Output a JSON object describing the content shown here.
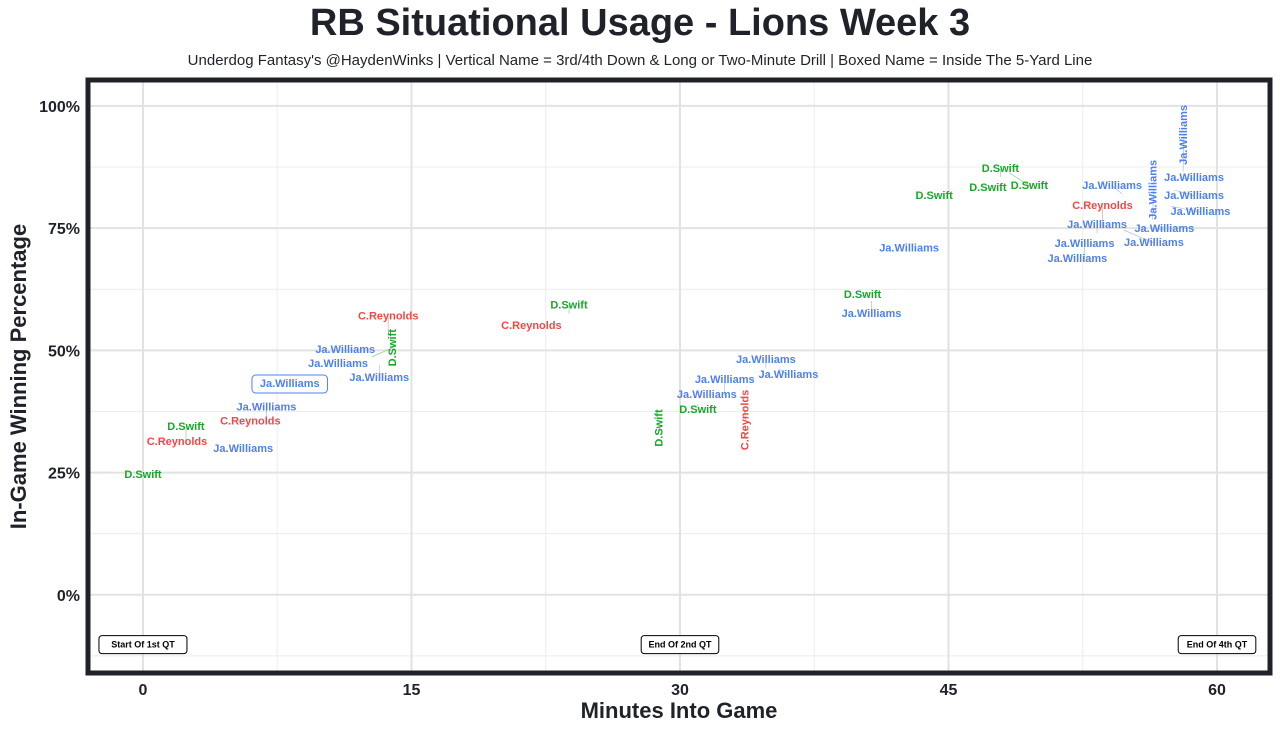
{
  "chart_data": {
    "type": "scatter",
    "title": "RB Situational Usage - Lions Week 3",
    "subtitle": "Underdog Fantasy's @HaydenWinks | Vertical Name = 3rd/4th Down & Long or Two-Minute Drill | Boxed Name = Inside The 5-Yard Line",
    "xlabel": "Minutes Into Game",
    "ylabel": "In-Game Winning Percentage",
    "xlim": [
      -3.07,
      62.96
    ],
    "ylim": [
      -16,
      105.3
    ],
    "xticks": [
      0,
      15,
      30,
      45,
      60
    ],
    "xtick_labels": [
      "0",
      "15",
      "30",
      "45",
      "60"
    ],
    "yticks": [
      0,
      25,
      50,
      75,
      100
    ],
    "ytick_labels": [
      "0%",
      "25%",
      "50%",
      "75%",
      "100%"
    ],
    "grid": true,
    "colors": {
      "Ja.Williams": "#4f80f0",
      "C.Reynolds": "#f04848",
      "D.Swift": "#16a82a"
    },
    "annotations": [
      {
        "text": "Start Of 1st QT",
        "x": 0,
        "y": -10.2
      },
      {
        "text": "End Of 2nd QT",
        "x": 30,
        "y": -10.2
      },
      {
        "text": "End Of 4th QT",
        "x": 60,
        "y": -10.2
      }
    ],
    "points": [
      {
        "name": "D.Swift",
        "x": 0,
        "y": 24.3,
        "vertical": false,
        "boxed": false
      },
      {
        "name": "C.Reynolds",
        "x": 1.9,
        "y": 31,
        "vertical": false,
        "boxed": false
      },
      {
        "name": "D.Swift",
        "x": 2.4,
        "y": 31.3,
        "vertical": false,
        "boxed": false
      },
      {
        "name": "Ja.Williams",
        "x": 5.6,
        "y": 29.6,
        "vertical": false,
        "boxed": false
      },
      {
        "name": "C.Reynolds",
        "x": 6.0,
        "y": 35.2,
        "vertical": false,
        "boxed": false
      },
      {
        "name": "Ja.Williams",
        "x": 6.9,
        "y": 35.2,
        "vertical": false,
        "boxed": false
      },
      {
        "name": "Ja.Williams",
        "x": 8.2,
        "y": 42.7,
        "vertical": false,
        "boxed": true
      },
      {
        "name": "Ja.Williams",
        "x": 11.3,
        "y": 49.9,
        "vertical": false,
        "boxed": false
      },
      {
        "name": "Ja.Williams",
        "x": 10.9,
        "y": 47,
        "vertical": false,
        "boxed": false
      },
      {
        "name": "Ja.Williams",
        "x": 13.2,
        "y": 47,
        "vertical": false,
        "boxed": false
      },
      {
        "name": "D.Swift",
        "x": 12.8,
        "y": 48.7,
        "vertical": true,
        "boxed": false
      },
      {
        "name": "C.Reynolds",
        "x": 13.7,
        "y": 52.4,
        "vertical": false,
        "boxed": false
      },
      {
        "name": "C.Reynolds",
        "x": 21.7,
        "y": 54.8,
        "vertical": false,
        "boxed": false
      },
      {
        "name": "D.Swift",
        "x": 23.8,
        "y": 57.5,
        "vertical": false,
        "boxed": false
      },
      {
        "name": "D.Swift",
        "x": 28.8,
        "y": 33.7,
        "vertical": true,
        "boxed": false
      },
      {
        "name": "Ja.Williams",
        "x": 31.5,
        "y": 40.7,
        "vertical": false,
        "boxed": false
      },
      {
        "name": "Ja.Williams",
        "x": 32.5,
        "y": 40.9,
        "vertical": false,
        "boxed": false
      },
      {
        "name": "D.Swift",
        "x": 31.0,
        "y": 39,
        "vertical": false,
        "boxed": false
      },
      {
        "name": "C.Reynolds",
        "x": 33.6,
        "y": 38.2,
        "vertical": true,
        "boxed": false
      },
      {
        "name": "Ja.Williams",
        "x": 34.8,
        "y": 46.4,
        "vertical": false,
        "boxed": false
      },
      {
        "name": "Ja.Williams",
        "x": 35.5,
        "y": 46.2,
        "vertical": false,
        "boxed": false
      },
      {
        "name": "Ja.Williams",
        "x": 42.8,
        "y": 70.6,
        "vertical": false,
        "boxed": false
      },
      {
        "name": "D.Swift",
        "x": 40.2,
        "y": 61.1,
        "vertical": false,
        "boxed": false
      },
      {
        "name": "Ja.Williams",
        "x": 40.7,
        "y": 60.1,
        "vertical": false,
        "boxed": false
      },
      {
        "name": "D.Swift",
        "x": 44.2,
        "y": 81.4,
        "vertical": false,
        "boxed": false
      },
      {
        "name": "D.Swift",
        "x": 47.2,
        "y": 83,
        "vertical": false,
        "boxed": false
      },
      {
        "name": "D.Swift",
        "x": 47.9,
        "y": 85.5,
        "vertical": false,
        "boxed": false
      },
      {
        "name": "D.Swift",
        "x": 48.4,
        "y": 86.3,
        "vertical": false,
        "boxed": false
      },
      {
        "name": "Ja.Williams",
        "x": 52.2,
        "y": 68.5,
        "vertical": false,
        "boxed": false
      },
      {
        "name": "Ja.Williams",
        "x": 52.6,
        "y": 68.7,
        "vertical": false,
        "boxed": false
      },
      {
        "name": "Ja.Williams",
        "x": 53.3,
        "y": 74,
        "vertical": false,
        "boxed": false
      },
      {
        "name": "C.Reynolds",
        "x": 53.6,
        "y": 75,
        "vertical": false,
        "boxed": false
      },
      {
        "name": "Ja.Williams",
        "x": 54.8,
        "y": 74.6,
        "vertical": false,
        "boxed": false
      },
      {
        "name": "Ja.Williams",
        "x": 56.5,
        "y": 74.6,
        "vertical": false,
        "boxed": false
      },
      {
        "name": "Ja.Williams",
        "x": 56.4,
        "y": 76.7,
        "vertical": true,
        "boxed": false
      },
      {
        "name": "Ja.Williams",
        "x": 54.7,
        "y": 82,
        "vertical": false,
        "boxed": false
      },
      {
        "name": "Ja.Williams",
        "x": 57.6,
        "y": 85,
        "vertical": false,
        "boxed": false
      },
      {
        "name": "Ja.Williams",
        "x": 57.6,
        "y": 82.8,
        "vertical": false,
        "boxed": false
      },
      {
        "name": "Ja.Williams",
        "x": 57.4,
        "y": 79.5,
        "vertical": false,
        "boxed": false
      },
      {
        "name": "Ja.Williams",
        "x": 58.1,
        "y": 86.5,
        "vertical": true,
        "boxed": false
      }
    ]
  }
}
